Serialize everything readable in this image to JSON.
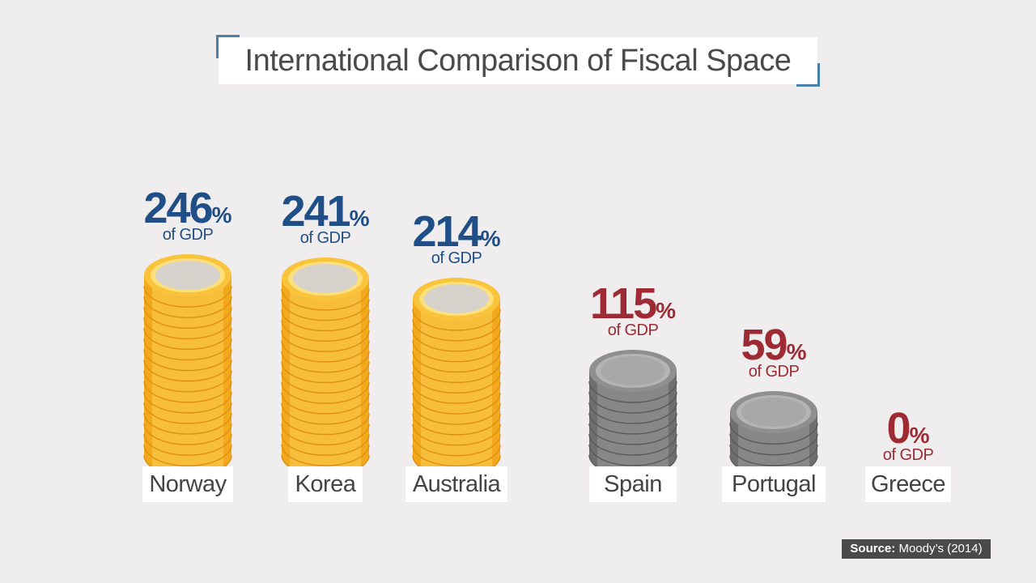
{
  "title": "International Comparison of Fiscal Space",
  "source": {
    "label": "Source:",
    "text": "Moody’s (2014)"
  },
  "unit_suffix": "%",
  "unit_subtitle": "of GDP",
  "colors": {
    "positive": "#1f4f86",
    "negative": "#9e2b34",
    "gold": "#f6b52a",
    "silver": "#8a8a8a"
  },
  "chart_data": {
    "type": "bar",
    "categories": [
      "Norway",
      "Korea",
      "Australia",
      "Spain",
      "Portugal",
      "Greece"
    ],
    "values": [
      246,
      241,
      214,
      115,
      59,
      0
    ],
    "value_labels": [
      "246",
      "241",
      "214",
      "115",
      "59",
      "0"
    ],
    "coin_style": [
      "gold",
      "gold",
      "gold",
      "silver",
      "silver",
      "none"
    ],
    "title": "International Comparison of Fiscal Space",
    "xlabel": "",
    "ylabel": "",
    "ylim": [
      0,
      260
    ]
  }
}
